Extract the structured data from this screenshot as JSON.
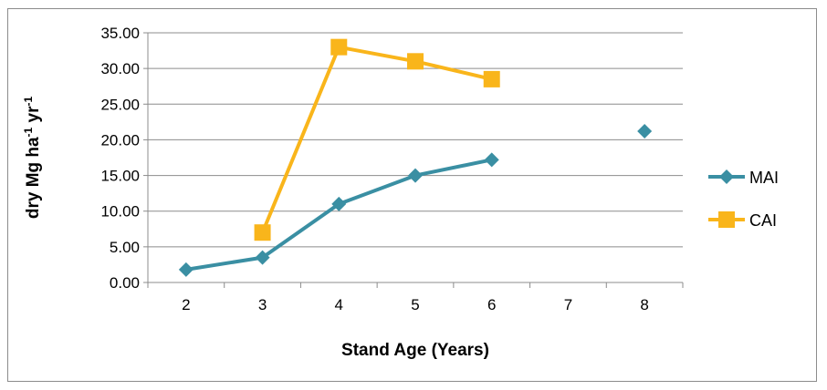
{
  "chart_data": {
    "type": "line",
    "xlabel": "Stand Age (Years)",
    "ylabel": {
      "parts": [
        "dry Mg ha",
        "-1",
        " yr",
        "-1"
      ]
    },
    "categories": [
      "2",
      "3",
      "4",
      "5",
      "6",
      "7",
      "8"
    ],
    "ylim": [
      0,
      35
    ],
    "y_ticks": [
      "0.00",
      "5.00",
      "10.00",
      "15.00",
      "20.00",
      "25.00",
      "30.00",
      "35.00"
    ],
    "grid": true,
    "legend_position": "right",
    "series": [
      {
        "name": "MAI",
        "color": "#3a8fa3",
        "marker": "diamond",
        "values": [
          1.8,
          3.5,
          11.0,
          15.0,
          17.2,
          null,
          21.2
        ]
      },
      {
        "name": "CAI",
        "color": "#f9b51b",
        "marker": "square",
        "values": [
          null,
          7.0,
          33.0,
          31.0,
          28.5,
          null,
          null
        ]
      }
    ]
  }
}
